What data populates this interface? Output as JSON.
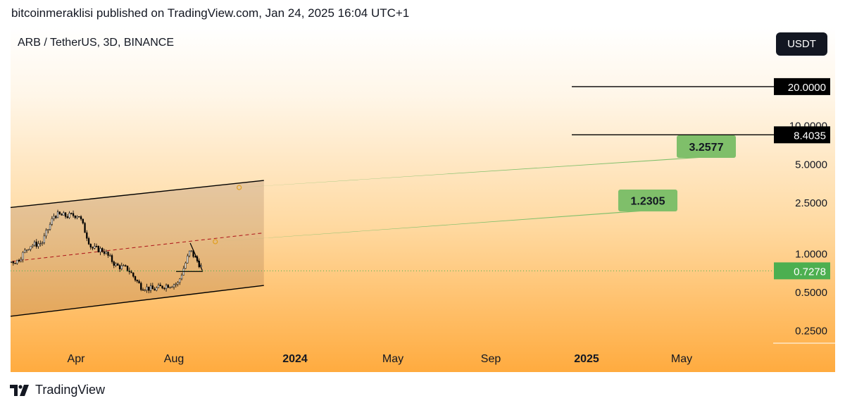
{
  "header": {
    "published": "bitcoinmeraklisi published on TradingView.com, Jan 24, 2025 16:04 UTC+1"
  },
  "symbol": "ARB / TetherUS, 3D, BINANCE",
  "currency_button": "USDT",
  "footer": {
    "brand": "TradingView",
    "logo_icon": "tradingview-logo-icon"
  },
  "colors": {
    "channel_line": "#000000",
    "midline": "#b22222",
    "candle": "#000000",
    "target_badge": "#7fbf6a",
    "price_badge": "#4caf50",
    "dark_badge": "#000000"
  },
  "chart_data": {
    "type": "candlestick",
    "scale": "log",
    "y_ticks": [
      "20.0000",
      "10.0000",
      "5.0000",
      "2.5000",
      "1.0000",
      "0.5000",
      "0.2500"
    ],
    "x_ticks": [
      "Apr",
      "Aug",
      "2024",
      "May",
      "Sep",
      "2025",
      "May"
    ],
    "x_ticks_bold": [
      false,
      false,
      true,
      false,
      false,
      true,
      false
    ],
    "current_price": {
      "label": "0.7278",
      "value": 0.7278
    },
    "horizontal_levels": [
      {
        "label": "20.0000",
        "value": 20.0
      },
      {
        "label": "8.4035",
        "value": 8.4035
      }
    ],
    "targets": [
      {
        "label": "3.2577",
        "value": 3.2577,
        "date": "2025-04"
      },
      {
        "label": "1.2305",
        "value": 1.2305,
        "date": "2025-02"
      }
    ],
    "channel": {
      "upper": [
        {
          "date": "2023-03",
          "value": 1.95
        },
        {
          "date": "2025-06",
          "value": 3.7
        }
      ],
      "lower": [
        {
          "date": "2023-03",
          "value": 0.27
        },
        {
          "date": "2025-06",
          "value": 0.56
        }
      ],
      "mid": [
        {
          "date": "2023-03",
          "value": 0.73
        },
        {
          "date": "2025-06",
          "value": 1.44
        }
      ]
    },
    "triangle": {
      "top": {
        "date": "2024-12",
        "value": 1.2
      },
      "apex": {
        "date": "2025-01",
        "value": 0.72
      },
      "base_value": 0.72
    },
    "price_path": [
      {
        "date": "2023-03",
        "value": 0.6
      },
      {
        "date": "2023-04",
        "value": 1.85
      },
      {
        "date": "2023-05",
        "value": 1.2
      },
      {
        "date": "2023-06",
        "value": 1.15
      },
      {
        "date": "2023-07",
        "value": 1.3
      },
      {
        "date": "2023-08",
        "value": 1.1
      },
      {
        "date": "2023-09",
        "value": 0.85
      },
      {
        "date": "2023-10",
        "value": 0.87
      },
      {
        "date": "2023-11",
        "value": 1.15
      },
      {
        "date": "2023-12",
        "value": 1.2
      },
      {
        "date": "2024-01",
        "value": 2.0
      },
      {
        "date": "2024-02",
        "value": 1.95
      },
      {
        "date": "2024-03",
        "value": 2.0
      },
      {
        "date": "2024-04",
        "value": 1.1
      },
      {
        "date": "2024-05",
        "value": 1.05
      },
      {
        "date": "2024-06",
        "value": 0.8
      },
      {
        "date": "2024-07",
        "value": 0.75
      },
      {
        "date": "2024-08",
        "value": 0.55
      },
      {
        "date": "2024-09",
        "value": 0.52
      },
      {
        "date": "2024-10",
        "value": 0.56
      },
      {
        "date": "2024-11",
        "value": 0.58
      },
      {
        "date": "2024-12",
        "value": 1.05
      },
      {
        "date": "2025-01",
        "value": 0.75
      }
    ]
  }
}
